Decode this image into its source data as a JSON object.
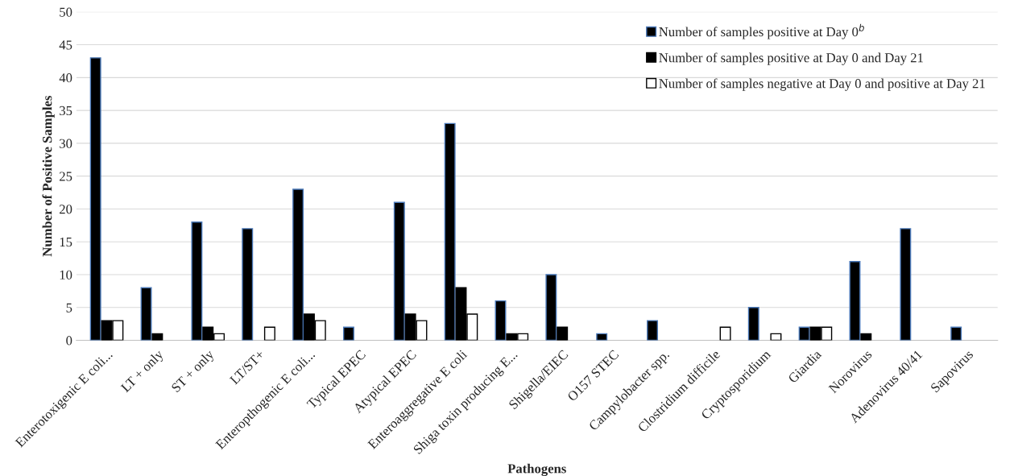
{
  "chart_data": {
    "type": "bar",
    "xlabel": "Pathogens",
    "ylabel": "Number of Positive Samples",
    "categories": [
      "Enterotoxigenic E coli...",
      "LT + only",
      "ST + only",
      "LT/ST+",
      "Enteropthogenic E coli...",
      "Typical EPEC",
      "Atypical EPEC",
      "Enteroaggregative E coli",
      "Shiga toxin producing E...",
      "Shigella/EIEC",
      "O157 STEC",
      "Campylobacter spp.",
      "Clostridium difficile",
      "Cryptosporidium",
      "Giardia",
      "Norovirus",
      "Adenovirus 40/41",
      "Sapovirus"
    ],
    "series": [
      {
        "name": "Number of samples positive at Day 0$^{b}$",
        "color": "#000000",
        "values": [
          43,
          8,
          18,
          17,
          23,
          2,
          21,
          33,
          6,
          10,
          1,
          3,
          0,
          5,
          2,
          12,
          17,
          2
        ]
      },
      {
        "name": "Number of samples positive at Day 0 and Day 21",
        "color": "#000000",
        "values": [
          3,
          1,
          2,
          0,
          4,
          0,
          4,
          8,
          1,
          2,
          0,
          0,
          0,
          0,
          2,
          1,
          0,
          0
        ]
      },
      {
        "name": "Number of samples negative at Day 0 and positive at Day 21",
        "color": "#ffffff",
        "values": [
          3,
          0,
          1,
          2,
          3,
          0,
          3,
          4,
          1,
          0,
          0,
          0,
          2,
          1,
          2,
          0,
          0,
          0
        ]
      }
    ],
    "ylim": [
      0,
      50
    ],
    "yticks": [
      0,
      5,
      10,
      15,
      20,
      25,
      30,
      35,
      40,
      45,
      50
    ],
    "grid": "y",
    "legend": "top right"
  }
}
